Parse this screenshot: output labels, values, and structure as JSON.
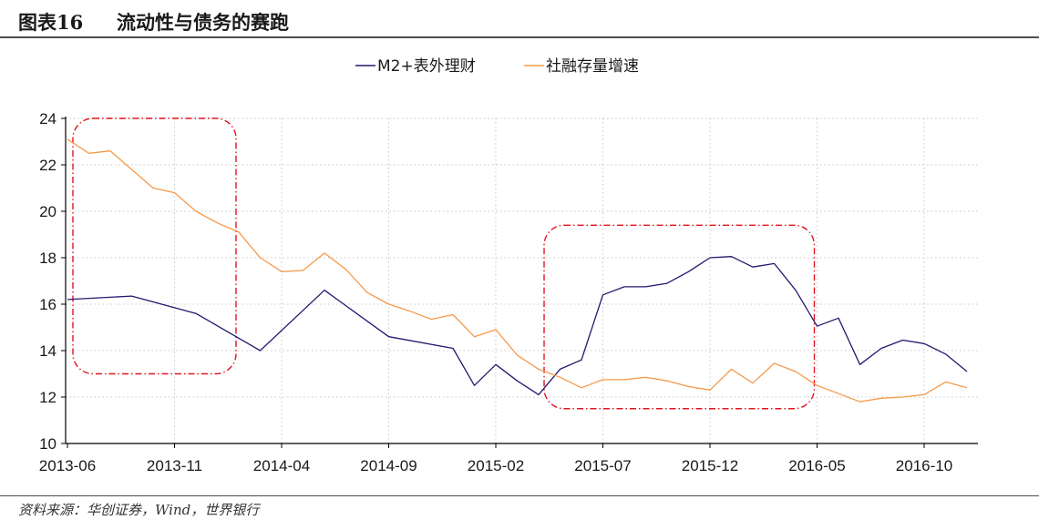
{
  "figure": {
    "number": "图表16",
    "title": "流动性与债务的赛跑",
    "source": "资料来源：华创证券，Wind，世界银行"
  },
  "colors": {
    "series_m2": "#1f1a6e",
    "series_tsf": "#f59a4b",
    "highlight_box": "#e0141e",
    "grid": "#c8c8c8",
    "axis": "#000000"
  },
  "chart_data": {
    "type": "line",
    "title": "",
    "xlabel": "",
    "ylabel": "",
    "ylim": [
      10,
      24
    ],
    "yticks": [
      "10",
      "12",
      "14",
      "16",
      "18",
      "20",
      "22",
      "24"
    ],
    "xtick_labels": [
      "2013-06",
      "2013-11",
      "2014-04",
      "2014-09",
      "2015-02",
      "2015-07",
      "2015-12",
      "2016-05",
      "2016-10"
    ],
    "x_range": [
      "2013-06",
      "2016-12"
    ],
    "grid": true,
    "legend_position": "top-center",
    "series": [
      {
        "name": "M2+表外理财",
        "points": [
          [
            "2013-06",
            16.2
          ],
          [
            "2013-09",
            16.35
          ],
          [
            "2013-12",
            15.6
          ],
          [
            "2014-03",
            14.0
          ],
          [
            "2014-06",
            16.6
          ],
          [
            "2014-09",
            14.6
          ],
          [
            "2014-12",
            14.1
          ],
          [
            "2015-01",
            12.5
          ],
          [
            "2015-02",
            13.4
          ],
          [
            "2015-03",
            12.7
          ],
          [
            "2015-04",
            12.1
          ],
          [
            "2015-05",
            13.2
          ],
          [
            "2015-06",
            13.6
          ],
          [
            "2015-07",
            16.4
          ],
          [
            "2015-08",
            16.75
          ],
          [
            "2015-09",
            16.75
          ],
          [
            "2015-10",
            16.9
          ],
          [
            "2015-11",
            17.4
          ],
          [
            "2015-12",
            18.0
          ],
          [
            "2016-01",
            18.05
          ],
          [
            "2016-02",
            17.6
          ],
          [
            "2016-03",
            17.75
          ],
          [
            "2016-04",
            16.6
          ],
          [
            "2016-05",
            15.05
          ],
          [
            "2016-06",
            15.4
          ],
          [
            "2016-07",
            13.4
          ],
          [
            "2016-08",
            14.1
          ],
          [
            "2016-09",
            14.45
          ],
          [
            "2016-10",
            14.3
          ],
          [
            "2016-11",
            13.85
          ],
          [
            "2016-12",
            13.1
          ]
        ]
      },
      {
        "name": "社融存量增速",
        "points": [
          [
            "2013-06",
            23.1
          ],
          [
            "2013-07",
            22.5
          ],
          [
            "2013-08",
            22.6
          ],
          [
            "2013-09",
            21.8
          ],
          [
            "2013-10",
            21.0
          ],
          [
            "2013-11",
            20.8
          ],
          [
            "2013-12",
            20.0
          ],
          [
            "2014-01",
            19.5
          ],
          [
            "2014-02",
            19.1
          ],
          [
            "2014-03",
            18.0
          ],
          [
            "2014-04",
            17.4
          ],
          [
            "2014-05",
            17.45
          ],
          [
            "2014-06",
            18.2
          ],
          [
            "2014-07",
            17.5
          ],
          [
            "2014-08",
            16.5
          ],
          [
            "2014-09",
            16.0
          ],
          [
            "2014-10",
            15.7
          ],
          [
            "2014-11",
            15.35
          ],
          [
            "2014-12",
            15.55
          ],
          [
            "2015-01",
            14.6
          ],
          [
            "2015-02",
            14.9
          ],
          [
            "2015-03",
            13.8
          ],
          [
            "2015-04",
            13.2
          ],
          [
            "2015-05",
            12.85
          ],
          [
            "2015-06",
            12.4
          ],
          [
            "2015-07",
            12.75
          ],
          [
            "2015-08",
            12.75
          ],
          [
            "2015-09",
            12.85
          ],
          [
            "2015-10",
            12.7
          ],
          [
            "2015-11",
            12.45
          ],
          [
            "2015-12",
            12.3
          ],
          [
            "2016-01",
            13.2
          ],
          [
            "2016-02",
            12.6
          ],
          [
            "2016-03",
            13.45
          ],
          [
            "2016-04",
            13.1
          ],
          [
            "2016-05",
            12.5
          ],
          [
            "2016-06",
            12.15
          ],
          [
            "2016-07",
            11.8
          ],
          [
            "2016-08",
            11.95
          ],
          [
            "2016-09",
            12.0
          ],
          [
            "2016-10",
            12.1
          ],
          [
            "2016-11",
            12.65
          ],
          [
            "2016-12",
            12.4
          ]
        ]
      }
    ],
    "highlight_regions": [
      {
        "x_from": "2013-06",
        "x_to": "2013-12",
        "y_from": 13.0,
        "y_to": 24.0
      },
      {
        "x_from": "2015-04",
        "x_to": "2016-03",
        "y_from": 11.5,
        "y_to": 19.4
      }
    ]
  }
}
